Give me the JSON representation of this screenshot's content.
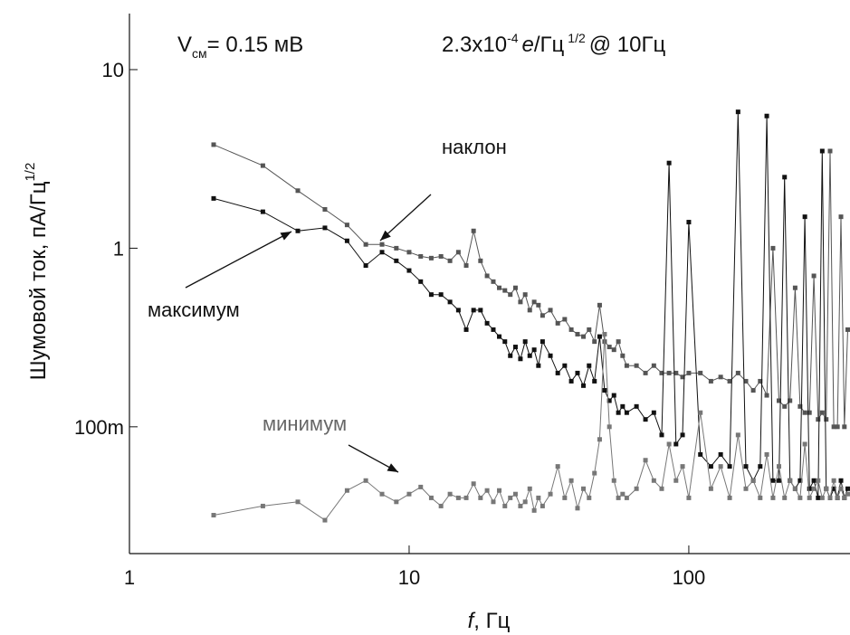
{
  "chart_data": {
    "type": "line",
    "bias_label": {
      "main": "V",
      "sub": "см",
      "rest": "= 0.15 мВ"
    },
    "noise_label": {
      "main": "2.3x10",
      "sup": "-4",
      "unit": "e",
      "rest": "/Гц",
      "sup2": "1/2",
      "tail": "@ 10Гц"
    },
    "x_label": {
      "var": "f",
      "rest": ", Гц"
    },
    "y_label": {
      "main": "Шумовой ток, пА/Гц",
      "sup": "1/2"
    },
    "annotations": {
      "slope": "наклон",
      "max": "максимум",
      "min": "минимум"
    },
    "log_x": true,
    "log_y": true,
    "xlim": [
      1,
      377
    ],
    "ylim": [
      0.0195,
      20.6
    ],
    "xticks": [
      1,
      10,
      100
    ],
    "yticks": [
      {
        "value": 0.1,
        "label": "100m"
      },
      1,
      10
    ],
    "x": [
      2,
      3,
      4,
      5,
      6,
      7,
      8,
      9,
      10,
      11,
      12,
      13,
      14,
      15,
      16,
      17,
      18,
      19,
      20,
      21,
      22,
      23,
      24,
      25,
      26,
      27,
      28,
      29,
      30,
      32,
      34,
      36,
      38,
      40,
      42,
      44,
      46,
      48,
      50,
      52,
      54,
      56,
      58,
      60,
      65,
      70,
      75,
      80,
      85,
      90,
      95,
      100,
      110,
      120,
      130,
      140,
      150,
      160,
      170,
      180,
      190,
      200,
      210,
      220,
      230,
      240,
      250,
      260,
      270,
      280,
      290,
      300,
      310,
      320,
      330,
      340,
      350,
      360,
      370
    ],
    "series": [
      {
        "color": "#555555",
        "values": [
          3.8,
          2.9,
          2.1,
          1.65,
          1.35,
          1.05,
          1.05,
          1.0,
          0.95,
          0.9,
          0.88,
          0.9,
          0.85,
          0.95,
          0.8,
          1.25,
          0.85,
          0.7,
          0.65,
          0.6,
          0.58,
          0.55,
          0.6,
          0.5,
          0.55,
          0.45,
          0.5,
          0.48,
          0.42,
          0.45,
          0.38,
          0.4,
          0.35,
          0.33,
          0.32,
          0.35,
          0.3,
          0.48,
          0.3,
          0.28,
          0.27,
          0.3,
          0.25,
          0.22,
          0.22,
          0.2,
          0.22,
          0.2,
          0.2,
          0.2,
          0.19,
          0.2,
          0.2,
          0.18,
          0.19,
          0.18,
          0.2,
          0.18,
          0.16,
          0.18,
          0.15,
          1.0,
          0.14,
          0.13,
          0.14,
          0.6,
          0.13,
          0.12,
          0.12,
          0.7,
          0.11,
          0.12,
          0.11,
          3.5,
          0.1,
          0.1,
          1.5,
          0.1,
          0.35
        ]
      },
      {
        "color": "#111111",
        "values": [
          1.9,
          1.6,
          1.25,
          1.3,
          1.1,
          0.8,
          0.95,
          0.85,
          0.75,
          0.65,
          0.55,
          0.55,
          0.5,
          0.45,
          0.35,
          0.45,
          0.45,
          0.38,
          0.35,
          0.32,
          0.3,
          0.25,
          0.28,
          0.24,
          0.3,
          0.25,
          0.27,
          0.22,
          0.3,
          0.25,
          0.2,
          0.22,
          0.18,
          0.2,
          0.17,
          0.22,
          0.18,
          0.32,
          0.16,
          0.14,
          0.15,
          0.12,
          0.13,
          0.12,
          0.13,
          0.11,
          0.12,
          0.09,
          3.0,
          0.08,
          0.09,
          1.4,
          0.07,
          0.06,
          0.07,
          0.06,
          5.8,
          0.06,
          0.05,
          0.06,
          5.5,
          0.05,
          0.05,
          2.5,
          0.05,
          0.045,
          0.05,
          1.5,
          0.045,
          0.05,
          0.04,
          3.5,
          0.045,
          0.04,
          0.045,
          0.04,
          0.05,
          0.04,
          0.045
        ]
      },
      {
        "color": "#777777",
        "values": [
          0.032,
          0.036,
          0.038,
          0.03,
          0.044,
          0.05,
          0.042,
          0.038,
          0.042,
          0.046,
          0.04,
          0.036,
          0.042,
          0.04,
          0.04,
          0.048,
          0.04,
          0.044,
          0.038,
          0.044,
          0.036,
          0.04,
          0.042,
          0.036,
          0.038,
          0.045,
          0.034,
          0.04,
          0.036,
          0.042,
          0.06,
          0.04,
          0.05,
          0.035,
          0.045,
          0.04,
          0.055,
          0.085,
          0.33,
          0.1,
          0.05,
          0.04,
          0.042,
          0.04,
          0.045,
          0.065,
          0.05,
          0.045,
          0.08,
          0.05,
          0.06,
          0.04,
          0.12,
          0.045,
          0.06,
          0.04,
          0.09,
          0.045,
          0.05,
          0.04,
          0.07,
          0.04,
          0.06,
          0.04,
          0.05,
          0.045,
          0.04,
          0.08,
          0.04,
          0.045,
          0.05,
          0.04,
          0.045,
          0.04,
          0.05,
          0.04,
          0.045,
          0.04,
          0.042
        ]
      }
    ]
  }
}
